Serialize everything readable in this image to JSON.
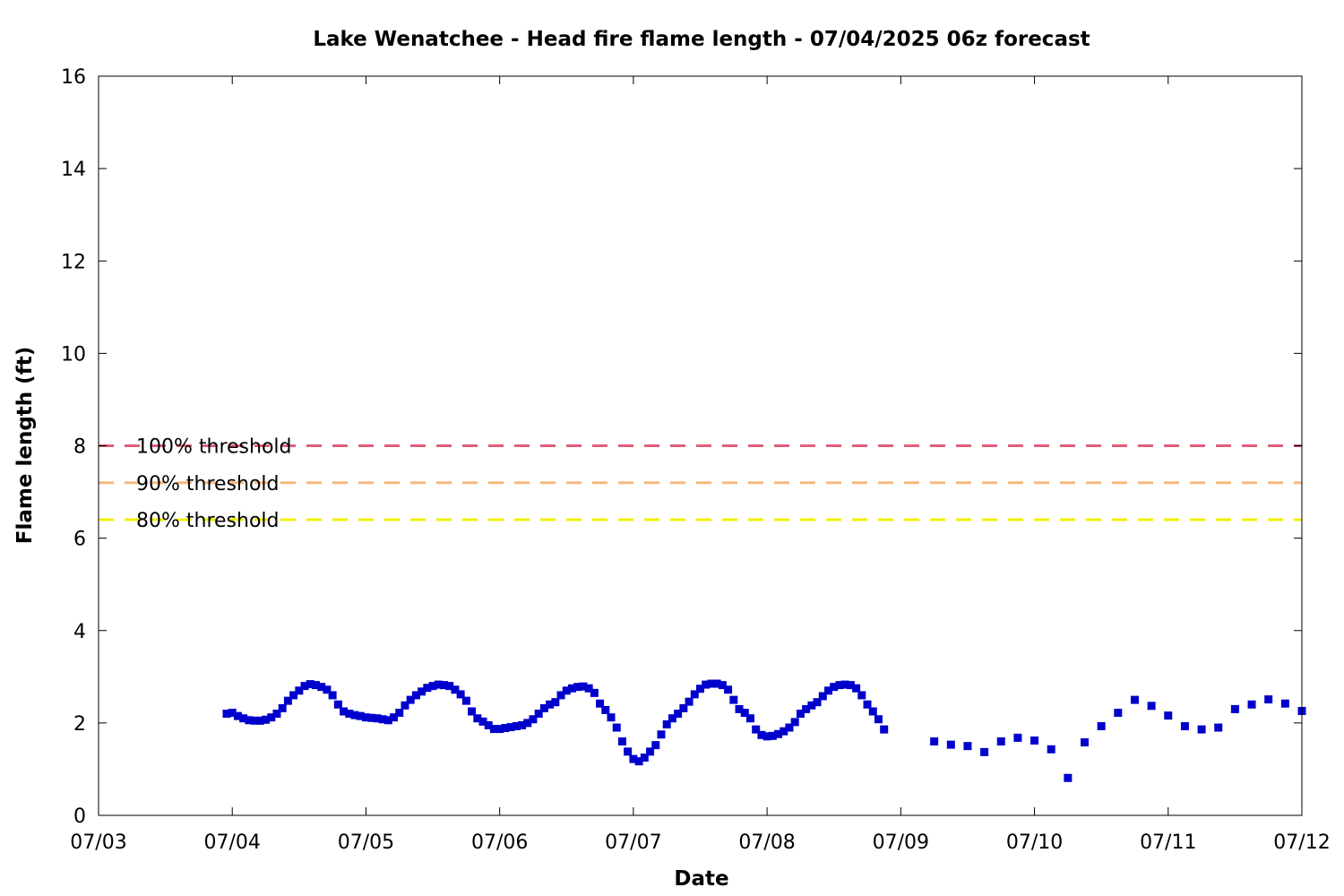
{
  "chart_data": {
    "type": "scatter",
    "title": "Lake Wenatchee - Head fire flame length - 07/04/2025 06z forecast",
    "xlabel": "Date",
    "ylabel": "Flame length (ft)",
    "xlim": [
      "07/03",
      "07/12"
    ],
    "ylim": [
      0,
      16
    ],
    "x_ticks": [
      "07/03",
      "07/04",
      "07/05",
      "07/06",
      "07/07",
      "07/08",
      "07/09",
      "07/10",
      "07/11",
      "07/12"
    ],
    "y_ticks": [
      "0",
      "2",
      "4",
      "6",
      "8",
      "10",
      "12",
      "14",
      "16"
    ],
    "grid": false,
    "legend_position": "left",
    "thresholds": [
      {
        "name": "100% threshold",
        "value": 8.0,
        "color": "#e0607a"
      },
      {
        "name": "90% threshold",
        "value": 7.2,
        "color": "#f5b97f"
      },
      {
        "name": "80% threshold",
        "value": 6.4,
        "color": "#f0f000"
      }
    ],
    "series": [
      {
        "color": "#0000cc",
        "marker": "square",
        "points": [
          [
            "07/03 23:00",
            2.2
          ],
          [
            "07/04 00:00",
            2.22
          ],
          [
            "07/04 01:00",
            2.15
          ],
          [
            "07/04 02:00",
            2.1
          ],
          [
            "07/04 03:00",
            2.06
          ],
          [
            "07/04 04:00",
            2.05
          ],
          [
            "07/04 05:00",
            2.05
          ],
          [
            "07/04 06:00",
            2.07
          ],
          [
            "07/04 07:00",
            2.12
          ],
          [
            "07/04 08:00",
            2.2
          ],
          [
            "07/04 09:00",
            2.32
          ],
          [
            "07/04 10:00",
            2.48
          ],
          [
            "07/04 11:00",
            2.6
          ],
          [
            "07/04 12:00",
            2.7
          ],
          [
            "07/04 13:00",
            2.8
          ],
          [
            "07/04 14:00",
            2.84
          ],
          [
            "07/04 15:00",
            2.82
          ],
          [
            "07/04 16:00",
            2.78
          ],
          [
            "07/04 17:00",
            2.72
          ],
          [
            "07/04 18:00",
            2.6
          ],
          [
            "07/04 19:00",
            2.4
          ],
          [
            "07/04 20:00",
            2.25
          ],
          [
            "07/04 21:00",
            2.2
          ],
          [
            "07/04 22:00",
            2.17
          ],
          [
            "07/04 23:00",
            2.15
          ],
          [
            "07/05 00:00",
            2.12
          ],
          [
            "07/05 01:00",
            2.11
          ],
          [
            "07/05 02:00",
            2.1
          ],
          [
            "07/05 03:00",
            2.08
          ],
          [
            "07/05 04:00",
            2.06
          ],
          [
            "07/05 05:00",
            2.12
          ],
          [
            "07/05 06:00",
            2.22
          ],
          [
            "07/05 07:00",
            2.38
          ],
          [
            "07/05 08:00",
            2.5
          ],
          [
            "07/05 09:00",
            2.6
          ],
          [
            "07/05 10:00",
            2.68
          ],
          [
            "07/05 11:00",
            2.76
          ],
          [
            "07/05 12:00",
            2.8
          ],
          [
            "07/05 13:00",
            2.83
          ],
          [
            "07/05 14:00",
            2.82
          ],
          [
            "07/05 15:00",
            2.8
          ],
          [
            "07/05 16:00",
            2.72
          ],
          [
            "07/05 17:00",
            2.62
          ],
          [
            "07/05 18:00",
            2.48
          ],
          [
            "07/05 19:00",
            2.25
          ],
          [
            "07/05 20:00",
            2.1
          ],
          [
            "07/05 21:00",
            2.03
          ],
          [
            "07/05 22:00",
            1.95
          ],
          [
            "07/05 23:00",
            1.87
          ],
          [
            "07/06 00:00",
            1.87
          ],
          [
            "07/06 01:00",
            1.89
          ],
          [
            "07/06 02:00",
            1.91
          ],
          [
            "07/06 03:00",
            1.93
          ],
          [
            "07/06 04:00",
            1.95
          ],
          [
            "07/06 05:00",
            2.0
          ],
          [
            "07/06 06:00",
            2.08
          ],
          [
            "07/06 07:00",
            2.2
          ],
          [
            "07/06 08:00",
            2.32
          ],
          [
            "07/06 09:00",
            2.4
          ],
          [
            "07/06 10:00",
            2.45
          ],
          [
            "07/06 11:00",
            2.6
          ],
          [
            "07/06 12:00",
            2.7
          ],
          [
            "07/06 13:00",
            2.75
          ],
          [
            "07/06 14:00",
            2.78
          ],
          [
            "07/06 15:00",
            2.79
          ],
          [
            "07/06 16:00",
            2.75
          ],
          [
            "07/06 17:00",
            2.65
          ],
          [
            "07/06 18:00",
            2.42
          ],
          [
            "07/06 19:00",
            2.28
          ],
          [
            "07/06 20:00",
            2.12
          ],
          [
            "07/06 21:00",
            1.9
          ],
          [
            "07/06 22:00",
            1.6
          ],
          [
            "07/06 23:00",
            1.38
          ],
          [
            "07/07 00:00",
            1.22
          ],
          [
            "07/07 01:00",
            1.17
          ],
          [
            "07/07 02:00",
            1.25
          ],
          [
            "07/07 03:00",
            1.38
          ],
          [
            "07/07 04:00",
            1.52
          ],
          [
            "07/07 05:00",
            1.75
          ],
          [
            "07/07 06:00",
            1.97
          ],
          [
            "07/07 07:00",
            2.1
          ],
          [
            "07/07 08:00",
            2.2
          ],
          [
            "07/07 09:00",
            2.32
          ],
          [
            "07/07 10:00",
            2.46
          ],
          [
            "07/07 11:00",
            2.62
          ],
          [
            "07/07 12:00",
            2.74
          ],
          [
            "07/07 13:00",
            2.83
          ],
          [
            "07/07 14:00",
            2.85
          ],
          [
            "07/07 15:00",
            2.85
          ],
          [
            "07/07 16:00",
            2.82
          ],
          [
            "07/07 17:00",
            2.72
          ],
          [
            "07/07 18:00",
            2.5
          ],
          [
            "07/07 19:00",
            2.3
          ],
          [
            "07/07 20:00",
            2.22
          ],
          [
            "07/07 21:00",
            2.1
          ],
          [
            "07/07 22:00",
            1.86
          ],
          [
            "07/07 23:00",
            1.74
          ],
          [
            "07/08 00:00",
            1.71
          ],
          [
            "07/08 01:00",
            1.72
          ],
          [
            "07/08 02:00",
            1.76
          ],
          [
            "07/08 03:00",
            1.82
          ],
          [
            "07/08 04:00",
            1.9
          ],
          [
            "07/08 05:00",
            2.02
          ],
          [
            "07/08 06:00",
            2.2
          ],
          [
            "07/08 07:00",
            2.3
          ],
          [
            "07/08 08:00",
            2.38
          ],
          [
            "07/08 09:00",
            2.45
          ],
          [
            "07/08 10:00",
            2.58
          ],
          [
            "07/08 11:00",
            2.7
          ],
          [
            "07/08 12:00",
            2.78
          ],
          [
            "07/08 13:00",
            2.82
          ],
          [
            "07/08 14:00",
            2.83
          ],
          [
            "07/08 15:00",
            2.82
          ],
          [
            "07/08 16:00",
            2.75
          ],
          [
            "07/08 17:00",
            2.6
          ],
          [
            "07/08 18:00",
            2.4
          ],
          [
            "07/08 19:00",
            2.25
          ],
          [
            "07/08 20:00",
            2.08
          ],
          [
            "07/08 21:00",
            1.86
          ],
          [
            "07/09 06:00",
            1.6
          ],
          [
            "07/09 09:00",
            1.53
          ],
          [
            "07/09 12:00",
            1.5
          ],
          [
            "07/09 15:00",
            1.37
          ],
          [
            "07/09 18:00",
            1.6
          ],
          [
            "07/09 21:00",
            1.68
          ],
          [
            "07/10 00:00",
            1.62
          ],
          [
            "07/10 03:00",
            1.43
          ],
          [
            "07/10 06:00",
            0.81
          ],
          [
            "07/10 09:00",
            1.58
          ],
          [
            "07/10 12:00",
            1.93
          ],
          [
            "07/10 15:00",
            2.22
          ],
          [
            "07/10 18:00",
            2.5
          ],
          [
            "07/10 21:00",
            2.37
          ],
          [
            "07/11 00:00",
            2.16
          ],
          [
            "07/11 03:00",
            1.93
          ],
          [
            "07/11 06:00",
            1.86
          ],
          [
            "07/11 09:00",
            1.9
          ],
          [
            "07/11 12:00",
            2.3
          ],
          [
            "07/11 15:00",
            2.4
          ],
          [
            "07/11 18:00",
            2.51
          ],
          [
            "07/11 21:00",
            2.42
          ],
          [
            "07/12 00:00",
            2.26
          ]
        ]
      }
    ]
  }
}
